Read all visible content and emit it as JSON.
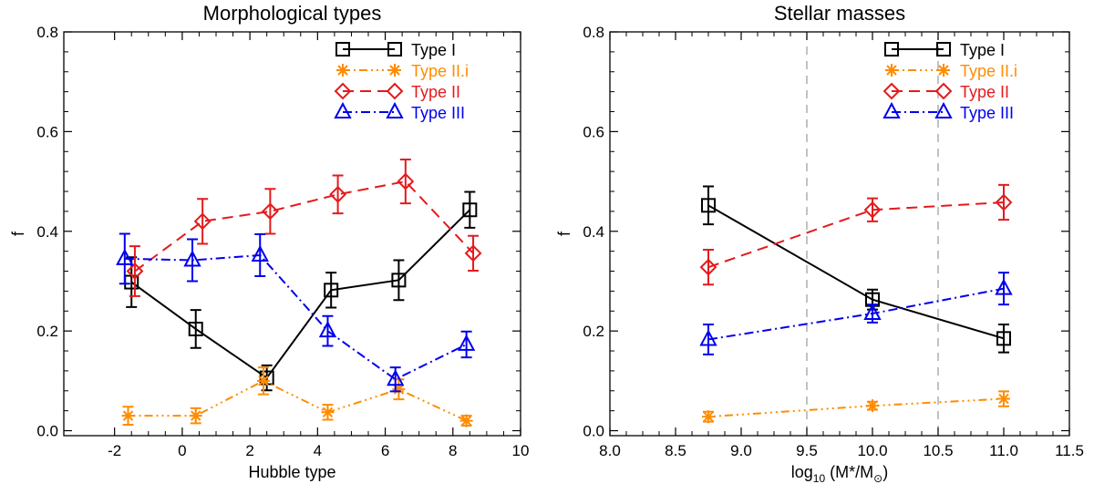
{
  "chart_data": [
    {
      "type": "line",
      "title": "Morphological types",
      "xlabel": "Hubble type",
      "ylabel": "f",
      "xlim": [
        -3.5,
        10
      ],
      "ylim": [
        -0.01,
        0.8
      ],
      "xticks": [
        -2,
        0,
        2,
        4,
        6,
        8,
        10
      ],
      "xtick_labels": [
        "-2",
        "0",
        "2",
        "4",
        "6",
        "8",
        "10"
      ],
      "yticks": [
        0.0,
        0.2,
        0.4,
        0.6,
        0.8
      ],
      "ytick_labels": [
        "0.0",
        "0.2",
        "0.4",
        "0.6",
        "0.8"
      ],
      "vlines": [],
      "legend_position": "top-right",
      "series": [
        {
          "name": "Type I",
          "color": "#000000",
          "marker": "square",
          "dash": "",
          "x": [
            -1.5,
            0.4,
            2.5,
            4.4,
            6.4,
            8.5
          ],
          "y": [
            0.298,
            0.204,
            0.106,
            0.282,
            0.302,
            0.443
          ],
          "err": [
            0.05,
            0.038,
            0.025,
            0.035,
            0.04,
            0.036
          ]
        },
        {
          "name": "Type II.i",
          "color": "#ff8c00",
          "marker": "asterisk",
          "dash": "2,4,2,4,2,4,9,4",
          "x": [
            -1.6,
            0.4,
            2.4,
            4.3,
            6.4,
            8.4
          ],
          "y": [
            0.03,
            0.03,
            0.1,
            0.037,
            0.083,
            0.02
          ],
          "err": [
            0.018,
            0.015,
            0.027,
            0.015,
            0.02,
            0.01
          ]
        },
        {
          "name": "Type II",
          "color": "#e41a1c",
          "marker": "diamond",
          "dash": "12,7",
          "x": [
            -1.4,
            0.6,
            2.6,
            4.6,
            6.6,
            8.6
          ],
          "y": [
            0.32,
            0.42,
            0.44,
            0.474,
            0.5,
            0.356
          ],
          "err": [
            0.05,
            0.045,
            0.045,
            0.038,
            0.044,
            0.035
          ]
        },
        {
          "name": "Type III",
          "color": "#0000ee",
          "marker": "triangle",
          "dash": "10,4,2,4",
          "x": [
            -1.7,
            0.3,
            2.3,
            4.3,
            6.3,
            8.4
          ],
          "y": [
            0.345,
            0.342,
            0.352,
            0.2,
            0.103,
            0.173
          ],
          "err": [
            0.05,
            0.042,
            0.042,
            0.03,
            0.024,
            0.026
          ]
        }
      ]
    },
    {
      "type": "line",
      "title": "Stellar masses",
      "xlabel": "log10 (M*/M⊙)",
      "xlabel_parts": {
        "log": "log",
        "sub": "10",
        "rest": " (M*/M",
        "sun": "⊙",
        "close": ")"
      },
      "ylabel": "f",
      "xlim": [
        8.0,
        11.5
      ],
      "ylim": [
        -0.01,
        0.8
      ],
      "xticks": [
        8.0,
        8.5,
        9.0,
        9.5,
        10.0,
        10.5,
        11.0,
        11.5
      ],
      "xtick_labels": [
        "8.0",
        "8.5",
        "9.0",
        "9.5",
        "10.0",
        "10.5",
        "11.0",
        "11.5"
      ],
      "yticks": [
        0.0,
        0.2,
        0.4,
        0.6,
        0.8
      ],
      "ytick_labels": [
        "0.0",
        "0.2",
        "0.4",
        "0.6",
        "0.8"
      ],
      "vlines": [
        9.5,
        10.5
      ],
      "legend_position": "top-right",
      "series": [
        {
          "name": "Type I",
          "color": "#000000",
          "marker": "square",
          "dash": "",
          "x": [
            8.75,
            10.0,
            11.0
          ],
          "y": [
            0.452,
            0.263,
            0.185
          ],
          "err": [
            0.038,
            0.02,
            0.028
          ]
        },
        {
          "name": "Type II.i",
          "color": "#ff8c00",
          "marker": "asterisk",
          "dash": "2,4,2,4,2,4,9,4",
          "x": [
            8.75,
            10.0,
            11.0
          ],
          "y": [
            0.028,
            0.05,
            0.064
          ],
          "err": [
            0.01,
            0.008,
            0.015
          ]
        },
        {
          "name": "Type II",
          "color": "#e41a1c",
          "marker": "diamond",
          "dash": "12,7",
          "x": [
            8.75,
            10.0,
            11.0
          ],
          "y": [
            0.328,
            0.443,
            0.458
          ],
          "err": [
            0.035,
            0.023,
            0.035
          ]
        },
        {
          "name": "Type III",
          "color": "#0000ee",
          "marker": "triangle",
          "dash": "10,4,2,4",
          "x": [
            8.75,
            10.0,
            11.0
          ],
          "y": [
            0.183,
            0.235,
            0.285
          ],
          "err": [
            0.03,
            0.018,
            0.032
          ]
        }
      ]
    }
  ]
}
